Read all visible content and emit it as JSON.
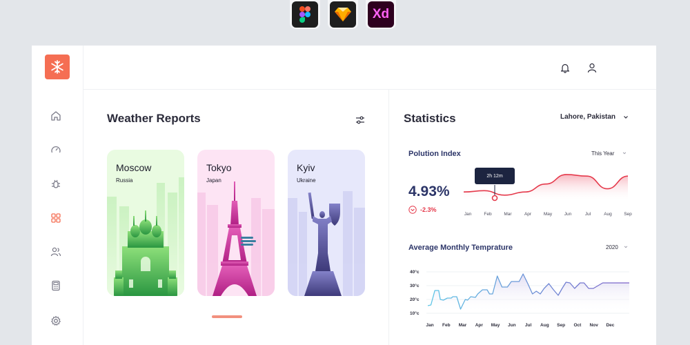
{
  "tools": {
    "figma": "figma-logo",
    "sketch": "sketch-logo",
    "xd": "Xd"
  },
  "sidebar": {
    "logo": "snowflake-icon",
    "items": [
      "home-icon",
      "gauge-icon",
      "bug-icon",
      "grid-icon",
      "users-icon",
      "calculator-icon",
      "gear-icon"
    ],
    "active_index": 3
  },
  "header": {
    "icons": [
      "bell-icon",
      "user-icon"
    ],
    "avatar": "avatar"
  },
  "weather": {
    "title": "Weather Reports",
    "cards": [
      {
        "city": "Moscow",
        "country": "Russia",
        "color": "#37a84a",
        "bg": "#e9fbe1"
      },
      {
        "city": "Tokyo",
        "country": "Japan",
        "color": "#c92f96",
        "bg": "#fde4f4"
      },
      {
        "city": "Kyiv",
        "country": "Ukraine",
        "color": "#4b478c",
        "bg": "#e7e8fb"
      }
    ]
  },
  "statistics": {
    "title": "Statistics",
    "location": "Lahore, Pakistan",
    "pollution": {
      "title": "Polution Index",
      "range": "This Year",
      "value": "4.93%",
      "delta": "-2.3%",
      "tooltip": "2h 12m",
      "chart_data": {
        "type": "area",
        "categories": [
          "Jan",
          "Feb",
          "Mar",
          "Apr",
          "May",
          "Jun",
          "Jul",
          "Aug",
          "Sep"
        ],
        "values": [
          0.3,
          0.34,
          0.2,
          0.3,
          0.55,
          0.85,
          0.8,
          0.4,
          0.8
        ]
      }
    },
    "temperature": {
      "title": "Average Monthly Temprature",
      "year": "2020",
      "chart_data": {
        "type": "line",
        "x": [
          0,
          0.2,
          0.45,
          0.7,
          0.8,
          1.0,
          1.25,
          1.5,
          1.6,
          1.85,
          2.1,
          2.4,
          2.55,
          2.75,
          3.05,
          3.2,
          3.5,
          3.8,
          3.95,
          4.15,
          4.45,
          4.75,
          5.1,
          5.35,
          5.55,
          5.75,
          5.85,
          6.1,
          6.4,
          6.7,
          6.95,
          7.2,
          7.45,
          7.75,
          8.05,
          8.35,
          8.6,
          8.85,
          9.1,
          9.4,
          9.75,
          10.0,
          10.3,
          10.6,
          10.9,
          11.2,
          11.5,
          11.8,
          12.0,
          12.2,
          12.55,
          12.9
        ],
        "y": [
          15.5,
          16,
          26.5,
          26.5,
          20,
          19.5,
          21,
          21,
          22,
          22,
          13,
          20,
          19.5,
          22,
          21.5,
          24,
          27,
          27,
          24,
          24,
          37,
          29,
          29,
          33,
          33,
          33,
          33,
          38.5,
          31.5,
          24,
          26,
          24,
          28,
          31.5,
          27,
          23,
          28,
          32.5,
          32,
          28,
          32,
          32,
          28,
          28,
          30,
          32,
          32,
          32,
          32,
          32,
          32,
          32
        ],
        "categories": [
          "Jan",
          "Feb",
          "Mar",
          "Apr",
          "May",
          "Jun",
          "Jul",
          "Aug",
          "Sep",
          "Oct",
          "Nov",
          "Dec"
        ],
        "y_ticks": [
          "40°c",
          "30°c",
          "20°c",
          "10°c"
        ],
        "ylim": [
          10,
          40
        ]
      }
    }
  }
}
